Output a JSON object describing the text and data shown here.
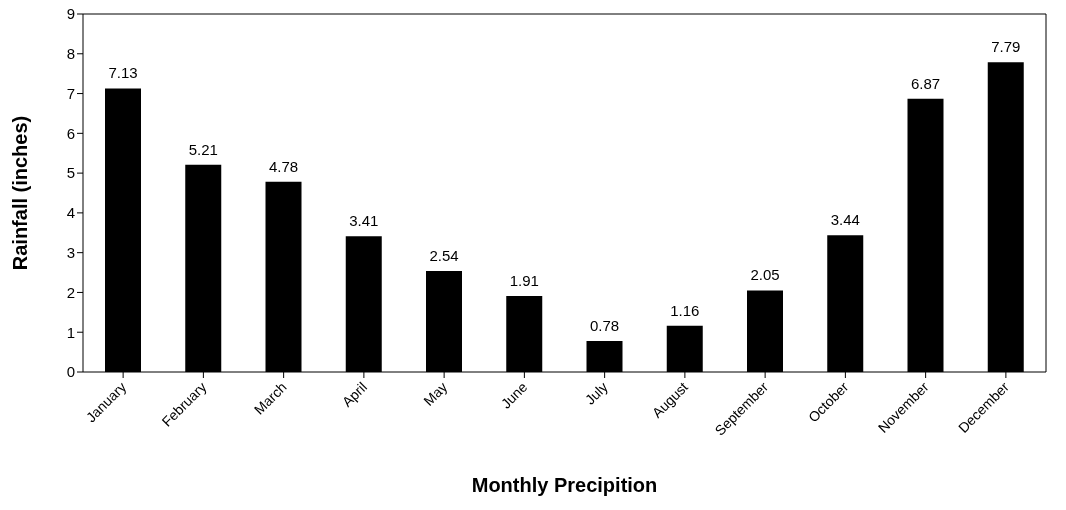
{
  "chart_data": {
    "type": "bar",
    "xlabel": "Monthly Precipition",
    "ylabel": "Rainfall (inches)",
    "categories": [
      "January",
      "February",
      "March",
      "April",
      "May",
      "June",
      "July",
      "August",
      "September",
      "October",
      "November",
      "December"
    ],
    "values": [
      7.13,
      5.21,
      4.78,
      3.41,
      2.54,
      1.91,
      0.78,
      1.16,
      2.05,
      3.44,
      6.87,
      7.79
    ],
    "color": "#000000",
    "ylim": [
      0,
      9
    ],
    "yticks": [
      0,
      1,
      2,
      3,
      4,
      5,
      6,
      7,
      8,
      9
    ],
    "data_labels": true,
    "grid": false,
    "legend": false
  }
}
